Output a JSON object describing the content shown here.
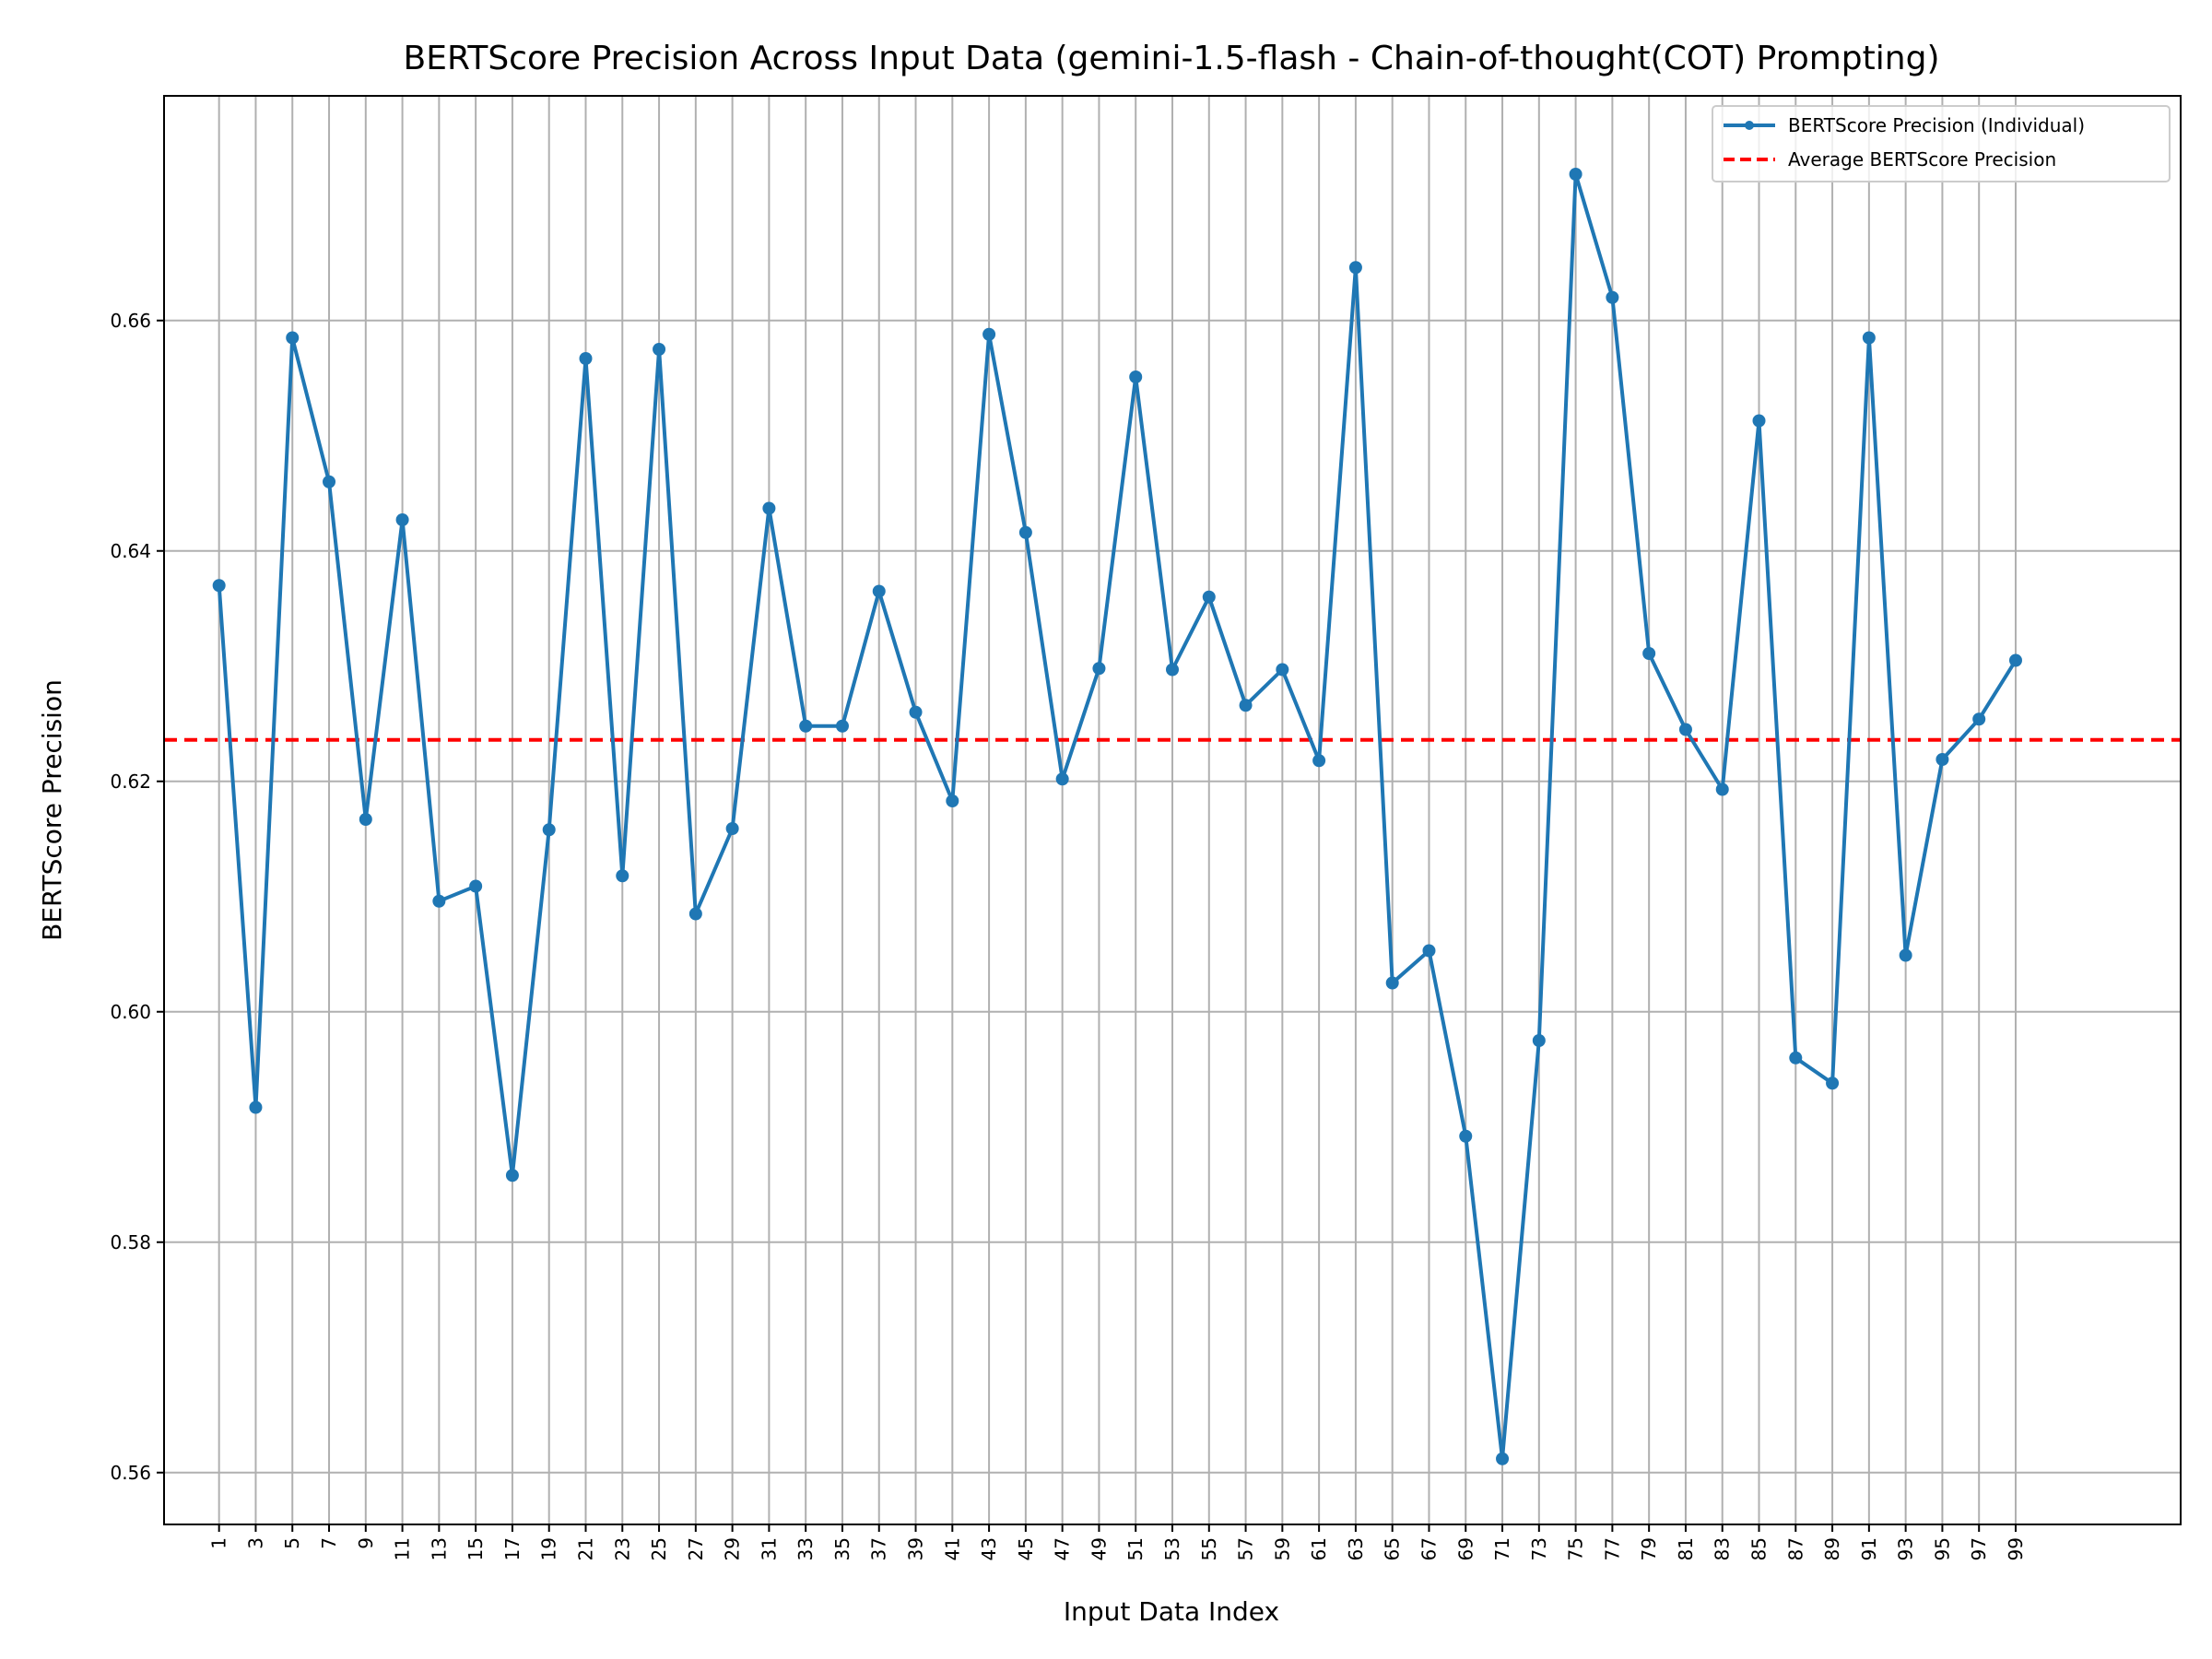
{
  "chart_data": {
    "type": "line",
    "title": "BERTScore Precision Across Input Data (gemini-1.5-flash - Chain-of-thought(COT) Prompting)",
    "xlabel": "Input Data Index",
    "ylabel": "BERTScore Precision",
    "xlim": [
      -2,
      108
    ],
    "ylim": [
      0.5555,
      0.6795
    ],
    "x_ticks": [
      1,
      3,
      5,
      7,
      9,
      11,
      13,
      15,
      17,
      19,
      21,
      23,
      25,
      27,
      29,
      31,
      33,
      35,
      37,
      39,
      41,
      43,
      45,
      47,
      49,
      51,
      53,
      55,
      57,
      59,
      61,
      63,
      65,
      67,
      69,
      71,
      73,
      75,
      77,
      79,
      81,
      83,
      85,
      87,
      89,
      91,
      93,
      95,
      97,
      99
    ],
    "y_ticks": [
      0.56,
      0.58,
      0.6,
      0.62,
      0.64,
      0.66
    ],
    "y_tick_labels": [
      "0.56",
      "0.58",
      "0.60",
      "0.62",
      "0.64",
      "0.66"
    ],
    "grid": true,
    "legend_position": "top-right",
    "series": [
      {
        "name": "BERTScore Precision (Individual)",
        "color": "#1f77b4",
        "style": "line-with-markers",
        "x": [
          1,
          3,
          5,
          7,
          9,
          11,
          13,
          15,
          17,
          19,
          21,
          23,
          25,
          27,
          29,
          31,
          33,
          35,
          37,
          39,
          41,
          43,
          45,
          47,
          49,
          51,
          53,
          55,
          57,
          59,
          61,
          63,
          65,
          67,
          69,
          71,
          73,
          75,
          77,
          79,
          81,
          83,
          85,
          87,
          89,
          91,
          93,
          95,
          97,
          99
        ],
        "y": [
          0.637,
          0.5917,
          0.6585,
          0.646,
          0.6167,
          0.6427,
          0.6096,
          0.6109,
          0.5858,
          0.6158,
          0.6567,
          0.6118,
          0.6575,
          0.6085,
          0.6159,
          0.6437,
          0.6248,
          0.6248,
          0.6365,
          0.626,
          0.6183,
          0.6588,
          0.6416,
          0.6202,
          0.6298,
          0.6551,
          0.6297,
          0.636,
          0.6266,
          0.6297,
          0.6218,
          0.6646,
          0.6025,
          0.6053,
          0.5892,
          0.5612,
          0.5975,
          0.6727,
          0.662,
          0.6311,
          0.6245,
          0.6193,
          0.6513,
          0.596,
          0.5938,
          0.6585,
          0.6049,
          0.6219,
          0.6254,
          0.6305
        ]
      },
      {
        "name": "Average BERTScore Precision",
        "color": "#ff0000",
        "style": "dashed",
        "value": 0.6236
      }
    ]
  }
}
